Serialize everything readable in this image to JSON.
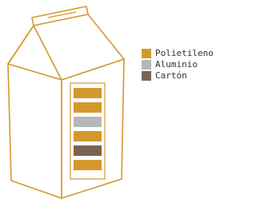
{
  "legend": {
    "items": [
      {
        "label": "Polietileno"
      },
      {
        "label": "Aluminio"
      },
      {
        "label": "Cartón"
      }
    ]
  }
}
